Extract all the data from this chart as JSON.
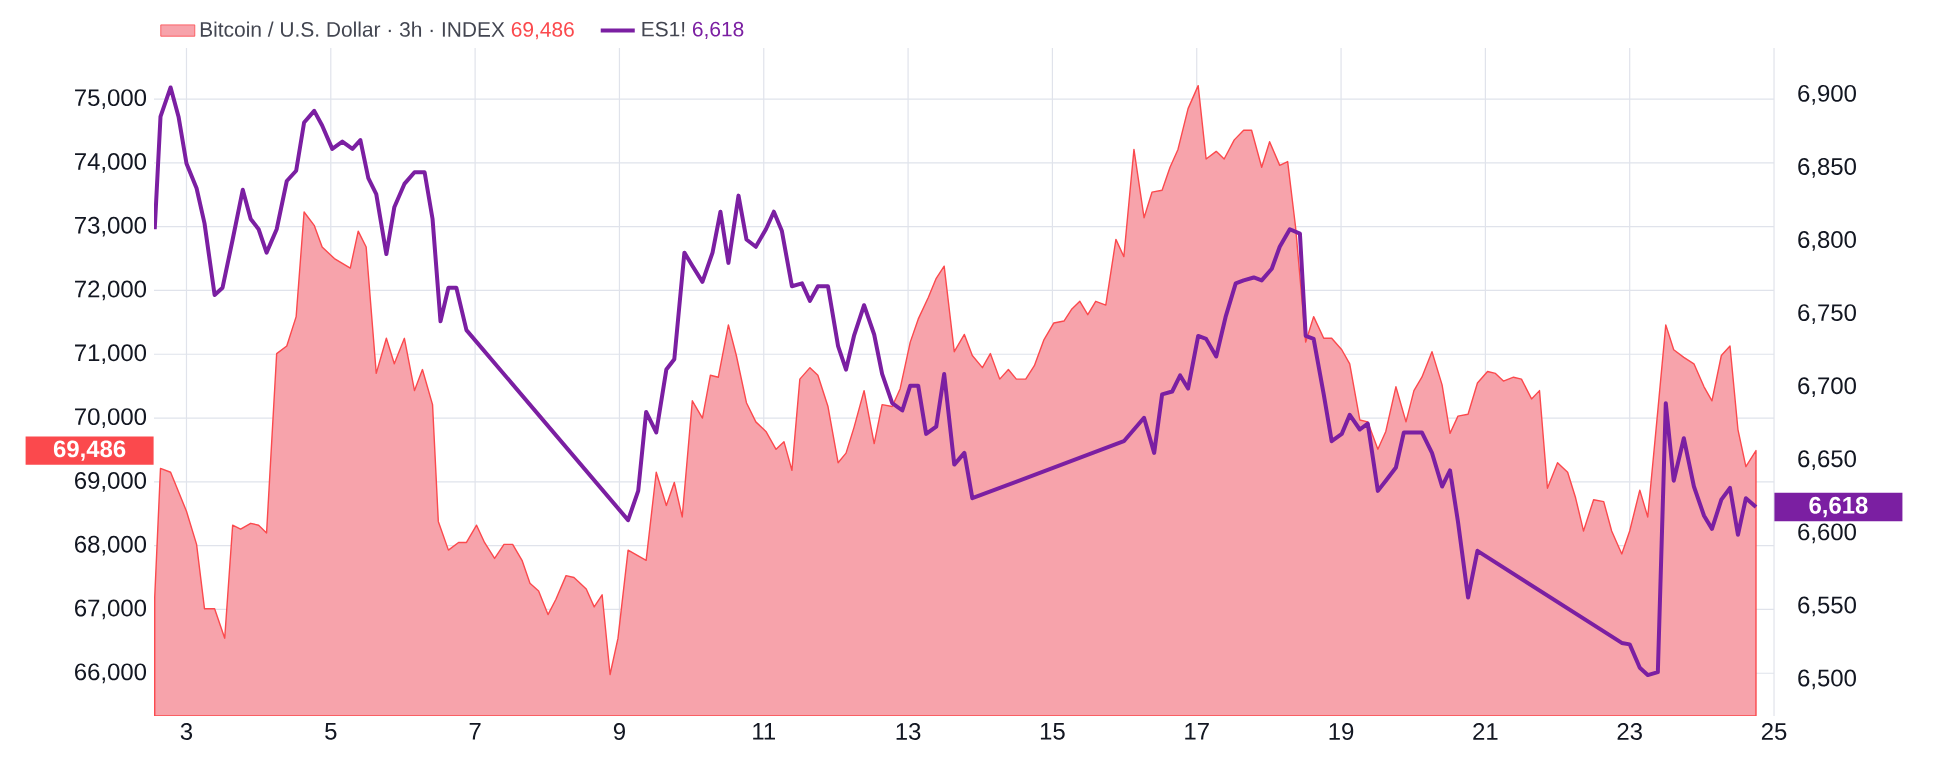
{
  "chart_data": {
    "type": "line",
    "legend": "top left",
    "grid": true,
    "xlim": [
      2.55,
      25
    ],
    "xticks": [
      3,
      5,
      7,
      9,
      11,
      13,
      15,
      17,
      19,
      21,
      23,
      25
    ],
    "ylim": [
      65330,
      75800
    ],
    "yticks": [
      {
        "value": 66000,
        "label": "66,000"
      },
      {
        "value": 67000,
        "label": "67,000"
      },
      {
        "value": 68000,
        "label": "68,000"
      },
      {
        "value": 69000,
        "label": "69,000"
      },
      {
        "value": 70000,
        "label": "70,000"
      },
      {
        "value": 71000,
        "label": "71,000"
      },
      {
        "value": 72000,
        "label": "72,000"
      },
      {
        "value": 73000,
        "label": "73,000"
      },
      {
        "value": 74000,
        "label": "74,000"
      },
      {
        "value": 75000,
        "label": "75,000"
      }
    ],
    "y2lim": [
      6475,
      6932
    ],
    "y2ticks": [
      {
        "value": 6500,
        "label": "6,500"
      },
      {
        "value": 6550,
        "label": "6,550"
      },
      {
        "value": 6600,
        "label": "6,600"
      },
      {
        "value": 6650,
        "label": "6,650"
      },
      {
        "value": 6700,
        "label": "6,700"
      },
      {
        "value": 6750,
        "label": "6,750"
      },
      {
        "value": 6800,
        "label": "6,800"
      },
      {
        "value": 6850,
        "label": "6,850"
      },
      {
        "value": 6900,
        "label": "6,900"
      }
    ],
    "series": [
      {
        "name": "Bitcoin / U.S. Dollar · 3h · INDEX",
        "type": "area",
        "color": "#f7a3ab",
        "x": [
          2.56,
          2.64,
          2.78,
          3.0,
          3.14,
          3.25,
          3.39,
          3.53,
          3.64,
          3.75,
          3.89,
          4.0,
          4.11,
          4.25,
          4.39,
          4.52,
          4.63,
          4.77,
          4.88,
          5.05,
          5.27,
          5.38,
          5.49,
          5.63,
          5.77,
          5.88,
          6.02,
          6.16,
          6.27,
          6.41,
          6.49,
          6.63,
          6.77,
          6.88,
          7.02,
          7.13,
          7.27,
          7.4,
          7.52,
          7.65,
          7.76,
          7.88,
          8.01,
          8.12,
          8.26,
          8.37,
          8.54,
          8.65,
          8.76,
          8.87,
          8.98,
          9.12,
          9.26,
          9.37,
          9.51,
          9.65,
          9.76,
          9.87,
          10.01,
          10.15,
          10.26,
          10.37,
          10.51,
          10.62,
          10.76,
          10.89,
          11.03,
          11.17,
          11.28,
          11.39,
          11.5,
          11.64,
          11.75,
          11.89,
          12.03,
          12.14,
          12.25,
          12.39,
          12.53,
          12.64,
          12.78,
          12.89,
          13.03,
          13.14,
          13.28,
          13.39,
          13.5,
          13.64,
          13.78,
          13.89,
          14.03,
          14.14,
          14.27,
          14.39,
          14.5,
          14.63,
          14.75,
          14.88,
          15.02,
          15.16,
          15.27,
          15.38,
          15.49,
          15.6,
          15.74,
          15.88,
          15.99,
          16.13,
          16.27,
          16.38,
          16.52,
          16.63,
          16.74,
          16.88,
          17.02,
          17.13,
          17.27,
          17.38,
          17.52,
          17.65,
          17.76,
          17.9,
          18.01,
          18.15,
          18.26,
          18.37,
          18.51,
          18.62,
          18.76,
          18.87,
          19.01,
          19.12,
          19.26,
          19.37,
          19.51,
          19.62,
          19.76,
          19.9,
          20.01,
          20.12,
          20.26,
          20.4,
          20.51,
          20.62,
          20.76,
          20.89,
          21.03,
          21.14,
          21.25,
          21.39,
          21.5,
          21.64,
          21.75,
          21.86,
          22.0,
          22.14,
          22.25,
          22.36,
          22.5,
          22.64,
          22.75,
          22.89,
          23.0,
          23.14,
          23.25,
          23.39,
          23.5,
          23.61,
          23.75,
          23.89,
          24.03,
          24.14,
          24.27,
          24.39,
          24.5,
          24.61,
          24.75
        ],
        "values": [
          67190,
          69210,
          69150,
          68540,
          68020,
          67010,
          67010,
          66550,
          68320,
          68260,
          68350,
          68320,
          68200,
          71010,
          71130,
          71590,
          73230,
          73020,
          72680,
          72500,
          72350,
          72930,
          72680,
          70700,
          71250,
          70850,
          71250,
          70430,
          70760,
          70210,
          68380,
          67930,
          68050,
          68050,
          68320,
          68050,
          67800,
          68020,
          68020,
          67770,
          67410,
          67290,
          66920,
          67160,
          67530,
          67500,
          67320,
          67040,
          67230,
          65980,
          66550,
          67930,
          67840,
          67770,
          69150,
          68630,
          68990,
          68450,
          70270,
          70000,
          70670,
          70640,
          71460,
          70980,
          70240,
          69940,
          69790,
          69510,
          69630,
          69180,
          70610,
          70790,
          70670,
          70180,
          69300,
          69450,
          69850,
          70430,
          69600,
          70210,
          70180,
          70460,
          71190,
          71550,
          71890,
          72190,
          72380,
          71040,
          71310,
          70980,
          70790,
          71010,
          70610,
          70760,
          70610,
          70610,
          70820,
          71220,
          71490,
          71520,
          71710,
          71830,
          71620,
          71830,
          71770,
          72800,
          72530,
          74210,
          73140,
          73540,
          73570,
          73930,
          74210,
          74850,
          75210,
          74060,
          74180,
          74060,
          74360,
          74510,
          74510,
          73930,
          74330,
          73960,
          74020,
          72990,
          71190,
          71590,
          71250,
          71250,
          71070,
          70850,
          69970,
          69940,
          69510,
          69790,
          70490,
          69940,
          70430,
          70640,
          71040,
          70520,
          69760,
          70030,
          70060,
          70550,
          70730,
          70700,
          70580,
          70640,
          70610,
          70300,
          70430,
          68900,
          69300,
          69150,
          68750,
          68230,
          68720,
          68690,
          68230,
          67870,
          68230,
          68870,
          68450,
          70120,
          71460,
          71070,
          70950,
          70850,
          70490,
          70270,
          70980,
          71130,
          69820,
          69240,
          69490
        ]
      },
      {
        "name": "ES1!",
        "axis": "y2",
        "color": "#7b1fa2",
        "x": [
          2.56,
          2.64,
          2.78,
          2.89,
          3.0,
          3.14,
          3.25,
          3.39,
          3.5,
          3.64,
          3.78,
          3.89,
          4.0,
          4.11,
          4.25,
          4.39,
          4.52,
          4.63,
          4.77,
          4.88,
          5.02,
          5.16,
          5.3,
          5.41,
          5.52,
          5.63,
          5.77,
          5.88,
          6.02,
          6.16,
          6.3,
          6.41,
          6.52,
          6.63,
          6.74,
          6.88,
          9.12,
          9.26,
          9.37,
          9.51,
          9.65,
          9.76,
          9.9,
          10.01,
          10.15,
          10.29,
          10.4,
          10.51,
          10.65,
          10.76,
          10.89,
          11.03,
          11.14,
          11.25,
          11.39,
          11.53,
          11.64,
          11.75,
          11.89,
          12.03,
          12.14,
          12.25,
          12.39,
          12.53,
          12.64,
          12.78,
          12.92,
          13.03,
          13.14,
          13.25,
          13.39,
          13.5,
          13.64,
          13.78,
          13.89,
          15.99,
          16.27,
          16.41,
          16.52,
          16.66,
          16.77,
          16.88,
          17.02,
          17.13,
          17.27,
          17.4,
          17.54,
          17.65,
          17.79,
          17.9,
          18.04,
          18.15,
          18.29,
          18.43,
          18.51,
          18.62,
          18.76,
          18.87,
          19.01,
          19.12,
          19.26,
          19.37,
          19.51,
          19.62,
          19.76,
          19.87,
          20.01,
          20.12,
          20.26,
          20.4,
          20.51,
          20.62,
          20.76,
          20.89,
          22.89,
          23.0,
          23.14,
          23.25,
          23.39,
          23.5,
          23.61,
          23.75,
          23.89,
          24.03,
          24.14,
          24.27,
          24.39,
          24.5,
          24.61,
          24.75
        ],
        "values": [
          6808,
          6885,
          6905,
          6885,
          6853,
          6836,
          6812,
          6763,
          6768,
          6801,
          6835,
          6815,
          6808,
          6792,
          6808,
          6841,
          6848,
          6881,
          6889,
          6879,
          6863,
          6868,
          6863,
          6869,
          6843,
          6832,
          6791,
          6823,
          6839,
          6847,
          6847,
          6815,
          6745,
          6768,
          6768,
          6739,
          6609,
          6629,
          6683,
          6669,
          6712,
          6719,
          6792,
          6783,
          6772,
          6792,
          6820,
          6785,
          6831,
          6801,
          6796,
          6808,
          6820,
          6807,
          6769,
          6771,
          6759,
          6769,
          6769,
          6728,
          6712,
          6735,
          6756,
          6736,
          6709,
          6689,
          6684,
          6701,
          6701,
          6668,
          6673,
          6709,
          6647,
          6655,
          6624,
          6663,
          6679,
          6655,
          6695,
          6697,
          6708,
          6699,
          6735,
          6733,
          6721,
          6748,
          6771,
          6773,
          6775,
          6773,
          6781,
          6796,
          6808,
          6805,
          6735,
          6733,
          6695,
          6663,
          6668,
          6681,
          6671,
          6675,
          6629,
          6636,
          6645,
          6669,
          6669,
          6669,
          6655,
          6632,
          6643,
          6608,
          6556,
          6588,
          6525,
          6524,
          6508,
          6503,
          6505,
          6689,
          6636,
          6665,
          6632,
          6612,
          6603,
          6623,
          6631,
          6599,
          6624,
          6618
        ]
      }
    ],
    "annotations": [
      "69,486",
      "6,618"
    ]
  }
}
